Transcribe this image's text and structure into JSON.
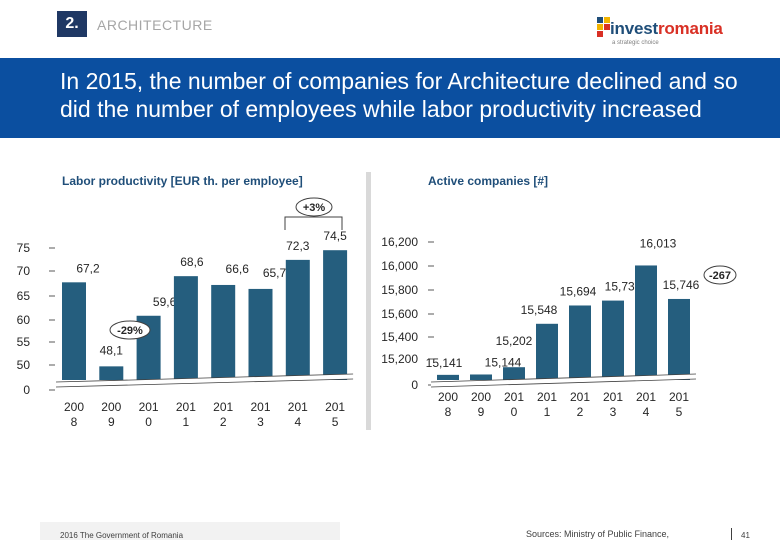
{
  "header": {
    "section_number": "2.",
    "section_name": "ARCHITECTURE",
    "logo_word_start": "invest",
    "logo_word_end": "romania",
    "logo_tagline": "a strategic choice",
    "title": "In 2015, the number of companies for Architecture declined and so did the number of employees while labor productivity increased"
  },
  "footer": {
    "copyright": "2016 The Government of Romania",
    "sources": "Sources: Ministry of Public Finance,",
    "page": "41"
  },
  "colors": {
    "banner": "#0b4fa0",
    "bar": "#255e7e",
    "label": "#1f4e79"
  },
  "chart_data": [
    {
      "type": "bar",
      "title": "Labor productivity [EUR th. per employee]",
      "categories": [
        "2008",
        "2009",
        "2010",
        "2011",
        "2012",
        "2013",
        "2014",
        "2015"
      ],
      "category_labels": [
        [
          "200",
          "8"
        ],
        [
          "200",
          "9"
        ],
        [
          "201",
          "0"
        ],
        [
          "201",
          "1"
        ],
        [
          "201",
          "2"
        ],
        [
          "201",
          "3"
        ],
        [
          "201",
          "4"
        ],
        [
          "201",
          "5"
        ]
      ],
      "values": [
        67.2,
        48.1,
        59.6,
        68.6,
        66.6,
        65.7,
        72.3,
        74.5
      ],
      "value_labels": [
        "67,2",
        "48,1",
        "59,6",
        "68,6",
        "66,6",
        "65,7",
        "72,3",
        "74,5"
      ],
      "y_ticks": [
        "75",
        "70",
        "65",
        "60",
        "55",
        "50",
        "0"
      ],
      "ylim": [
        45,
        75
      ],
      "axis_break": true,
      "annotations": [
        {
          "text": "-29%",
          "from": "2008",
          "to": "2009"
        },
        {
          "text": "+3%",
          "from": "2014",
          "to": "2015"
        }
      ],
      "grid": false
    },
    {
      "type": "bar",
      "title": "Active companies [#]",
      "categories": [
        "2008",
        "2009",
        "2010",
        "2011",
        "2012",
        "2013",
        "2014",
        "2015"
      ],
      "category_labels": [
        [
          "200",
          "8"
        ],
        [
          "200",
          "9"
        ],
        [
          "201",
          "0"
        ],
        [
          "201",
          "1"
        ],
        [
          "201",
          "2"
        ],
        [
          "201",
          "3"
        ],
        [
          "201",
          "4"
        ],
        [
          "201",
          "5"
        ]
      ],
      "values": [
        15141,
        15144,
        15202,
        15548,
        15694,
        15733,
        16013,
        15746
      ],
      "value_labels": [
        "15,141",
        "15,144",
        "15,202",
        "15,548",
        "15,694",
        "15,733",
        "16,013",
        "15,746"
      ],
      "y_ticks": [
        "16,200",
        "16,000",
        "15,800",
        "15,600",
        "15,400",
        "15,200",
        "0"
      ],
      "ylim": [
        15100,
        16200
      ],
      "axis_break": true,
      "annotations": [
        {
          "text": "-267",
          "from": "2014",
          "to": "2015"
        }
      ],
      "grid": false
    }
  ]
}
